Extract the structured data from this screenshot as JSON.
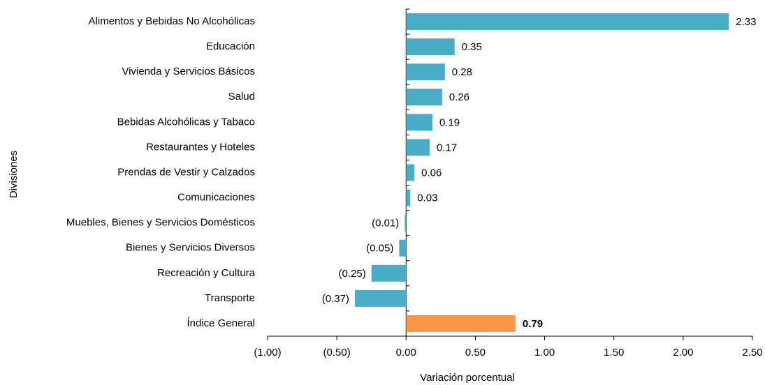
{
  "chart_data": {
    "type": "barh",
    "categories": [
      "Alimentos y Bebidas No Alcohólicas",
      "Educación",
      "Vivienda y Servicios Básicos",
      "Salud",
      "Bebidas Alcohólicas y Tabaco",
      "Restaurantes  y Hoteles",
      "Prendas de Vestir y Calzados",
      "Comunicaciones",
      "Muebles, Bienes y Servicios Domésticos",
      "Bienes y Servicios Diversos",
      "Recreación y Cultura",
      "Transporte",
      "Índice General"
    ],
    "values": [
      2.33,
      0.35,
      0.28,
      0.26,
      0.19,
      0.17,
      0.06,
      0.03,
      -0.01,
      -0.05,
      -0.25,
      -0.37,
      0.79
    ],
    "value_labels": [
      "2.33",
      "0.35",
      "0.28",
      "0.26",
      "0.19",
      "0.17",
      "0.06",
      "0.03",
      "(0.01)",
      "(0.05)",
      "(0.25)",
      "(0.37)",
      "0.79"
    ],
    "colors": [
      "#4bacc6",
      "#4bacc6",
      "#4bacc6",
      "#4bacc6",
      "#4bacc6",
      "#4bacc6",
      "#4bacc6",
      "#4bacc6",
      "#4bacc6",
      "#4bacc6",
      "#4bacc6",
      "#4bacc6",
      "#f79646"
    ],
    "xlabel": "Variación porcentual",
    "ylabel": "Divisiones",
    "xlim": [
      -1,
      2.5
    ],
    "xticks": [
      {
        "value": -1,
        "label": "(1.00)"
      },
      {
        "value": -0.5,
        "label": "(0.50)"
      },
      {
        "value": 0,
        "label": "0.00"
      },
      {
        "value": 0.5,
        "label": "0.50"
      },
      {
        "value": 1,
        "label": "1.00"
      },
      {
        "value": 1.5,
        "label": "1.50"
      },
      {
        "value": 2,
        "label": "2.00"
      },
      {
        "value": 2.5,
        "label": "2.50"
      }
    ]
  }
}
